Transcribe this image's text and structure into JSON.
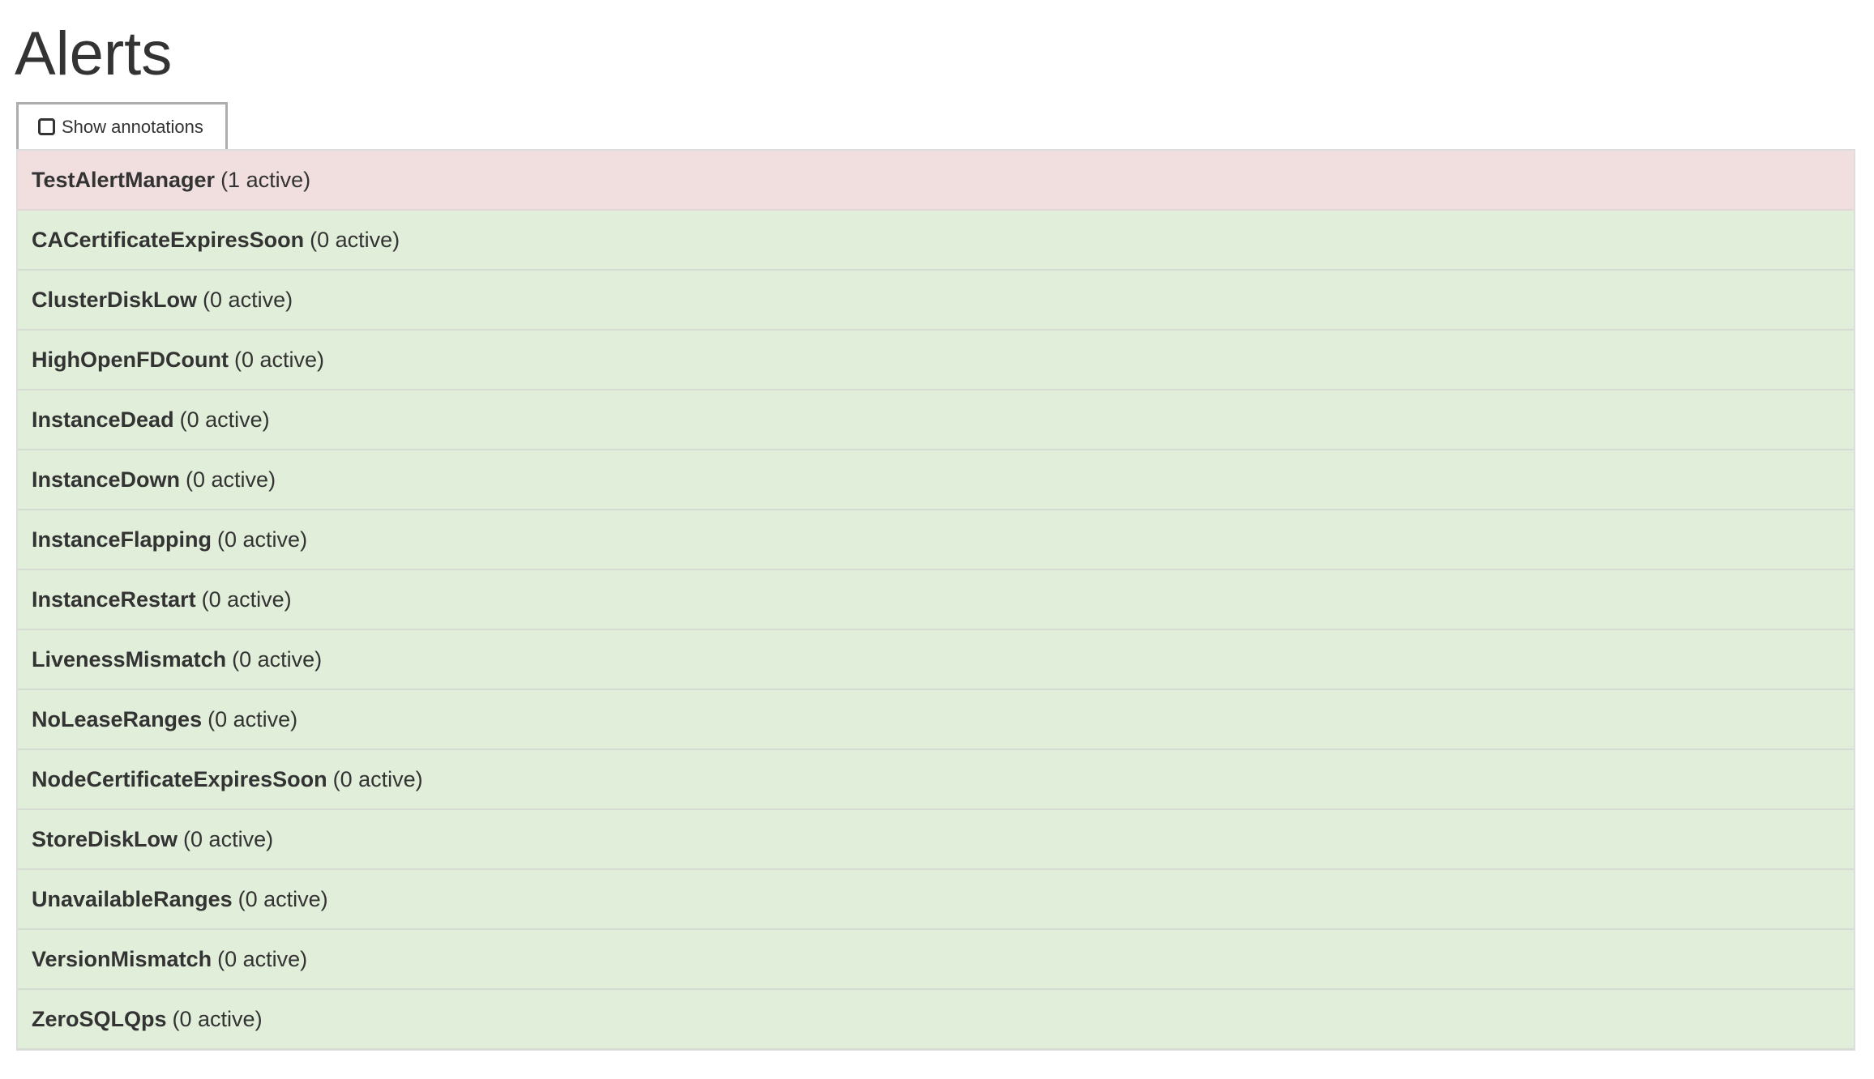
{
  "page": {
    "title": "Alerts"
  },
  "toolbar": {
    "show_annotations_label": "Show annotations",
    "show_annotations_checked": false
  },
  "colors": {
    "firing": "#f2dede",
    "inactive": "#dff0d8",
    "text": "#333333"
  },
  "alerts": [
    {
      "name": "TestAlertManager",
      "status": "(1 active)",
      "state": "firing"
    },
    {
      "name": "CACertificateExpiresSoon",
      "status": "(0 active)",
      "state": "inactive"
    },
    {
      "name": "ClusterDiskLow",
      "status": "(0 active)",
      "state": "inactive"
    },
    {
      "name": "HighOpenFDCount",
      "status": "(0 active)",
      "state": "inactive"
    },
    {
      "name": "InstanceDead",
      "status": "(0 active)",
      "state": "inactive"
    },
    {
      "name": "InstanceDown",
      "status": "(0 active)",
      "state": "inactive"
    },
    {
      "name": "InstanceFlapping",
      "status": "(0 active)",
      "state": "inactive"
    },
    {
      "name": "InstanceRestart",
      "status": "(0 active)",
      "state": "inactive"
    },
    {
      "name": "LivenessMismatch",
      "status": "(0 active)",
      "state": "inactive"
    },
    {
      "name": "NoLeaseRanges",
      "status": "(0 active)",
      "state": "inactive"
    },
    {
      "name": "NodeCertificateExpiresSoon",
      "status": "(0 active)",
      "state": "inactive"
    },
    {
      "name": "StoreDiskLow",
      "status": "(0 active)",
      "state": "inactive"
    },
    {
      "name": "UnavailableRanges",
      "status": "(0 active)",
      "state": "inactive"
    },
    {
      "name": "VersionMismatch",
      "status": "(0 active)",
      "state": "inactive"
    },
    {
      "name": "ZeroSQLQps",
      "status": "(0 active)",
      "state": "inactive"
    }
  ]
}
